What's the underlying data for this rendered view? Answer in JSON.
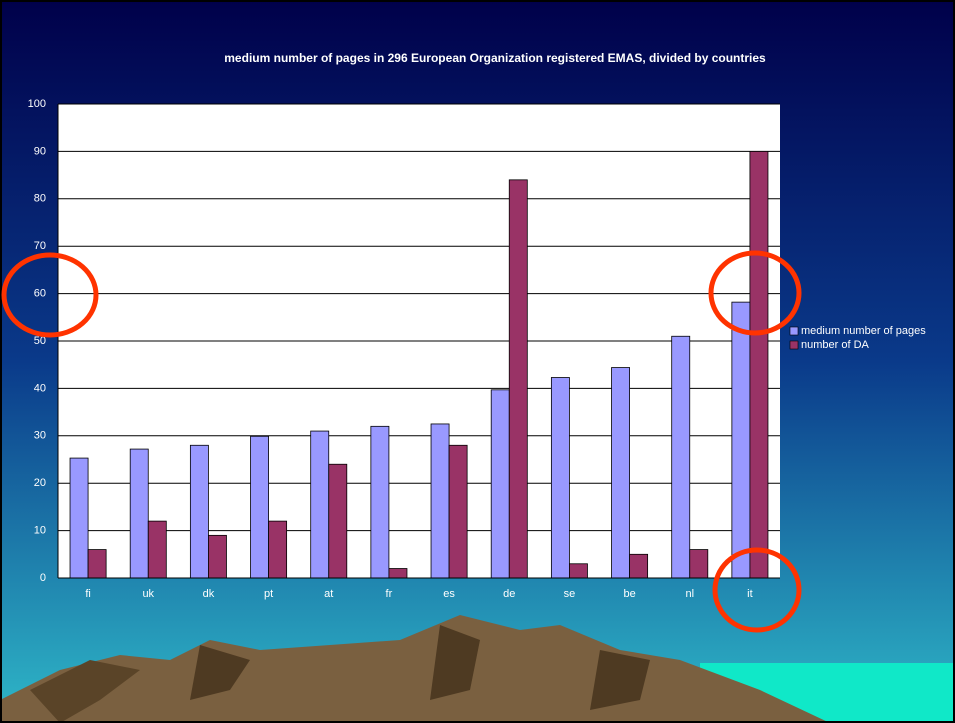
{
  "chart_data": {
    "type": "bar",
    "title": "medium number of pages in 296 European Organization registered EMAS, divided by countries",
    "categories": [
      "fi",
      "uk",
      "dk",
      "pt",
      "at",
      "fr",
      "es",
      "de",
      "se",
      "be",
      "nl",
      "it"
    ],
    "series": [
      {
        "name": "medium number of pages",
        "color": "#9999ff",
        "values": [
          25.3,
          27.2,
          28,
          29.9,
          31,
          32,
          32.5,
          39.7,
          42.3,
          44.4,
          51,
          58.2
        ]
      },
      {
        "name": "number of DA",
        "color": "#993366",
        "values": [
          6,
          12,
          9,
          12,
          24,
          2,
          28,
          84,
          3,
          5,
          6,
          90
        ]
      }
    ],
    "ylim": [
      0,
      100
    ],
    "yticks": [
      0,
      10,
      20,
      30,
      40,
      50,
      60,
      70,
      80,
      90,
      100
    ],
    "grid": true,
    "legend": "right"
  }
}
